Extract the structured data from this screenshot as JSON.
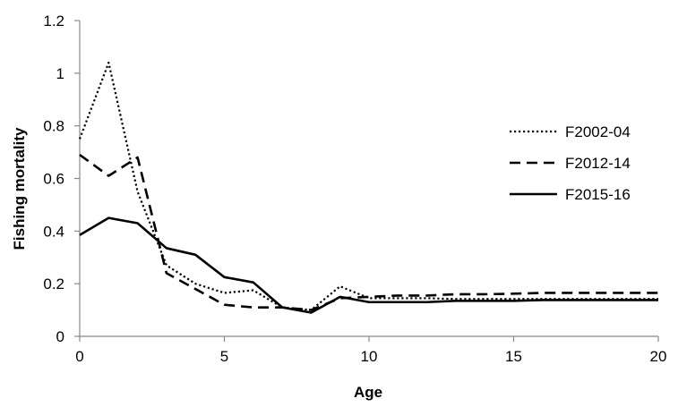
{
  "chart_data": {
    "type": "line",
    "title": "",
    "xlabel": "Age",
    "ylabel": "Fishing mortality",
    "xlim": [
      0,
      20
    ],
    "ylim": [
      0,
      1.2
    ],
    "x_ticks": [
      0,
      5,
      10,
      15,
      20
    ],
    "y_ticks": [
      0,
      0.2,
      0.4,
      0.6,
      0.8,
      1,
      1.2
    ],
    "y_tick_labels": [
      "0",
      "0.2",
      "0.4",
      "0.6",
      "0.8",
      "1",
      "1.2"
    ],
    "x": [
      0,
      1,
      2,
      3,
      4,
      5,
      6,
      7,
      8,
      9,
      10,
      11,
      12,
      13,
      14,
      15,
      16,
      17,
      18,
      19,
      20
    ],
    "grid": false,
    "legend_position": "right",
    "series": [
      {
        "name": "F2002-04",
        "dash": "dotted",
        "values": [
          0.75,
          1.04,
          0.55,
          0.27,
          0.2,
          0.165,
          0.175,
          0.11,
          0.1,
          0.19,
          0.145,
          0.145,
          0.145,
          0.142,
          0.142,
          0.142,
          0.142,
          0.142,
          0.142,
          0.142,
          0.142
        ]
      },
      {
        "name": "F2012-14",
        "dash": "dashed",
        "values": [
          0.69,
          0.61,
          0.68,
          0.24,
          0.18,
          0.12,
          0.11,
          0.11,
          0.1,
          0.145,
          0.15,
          0.155,
          0.155,
          0.16,
          0.16,
          0.162,
          0.165,
          0.165,
          0.165,
          0.165,
          0.165
        ]
      },
      {
        "name": "F2015-16",
        "dash": "solid",
        "values": [
          0.385,
          0.45,
          0.43,
          0.335,
          0.31,
          0.225,
          0.205,
          0.11,
          0.09,
          0.15,
          0.13,
          0.13,
          0.13,
          0.135,
          0.135,
          0.135,
          0.138,
          0.138,
          0.138,
          0.138,
          0.138
        ]
      }
    ]
  }
}
